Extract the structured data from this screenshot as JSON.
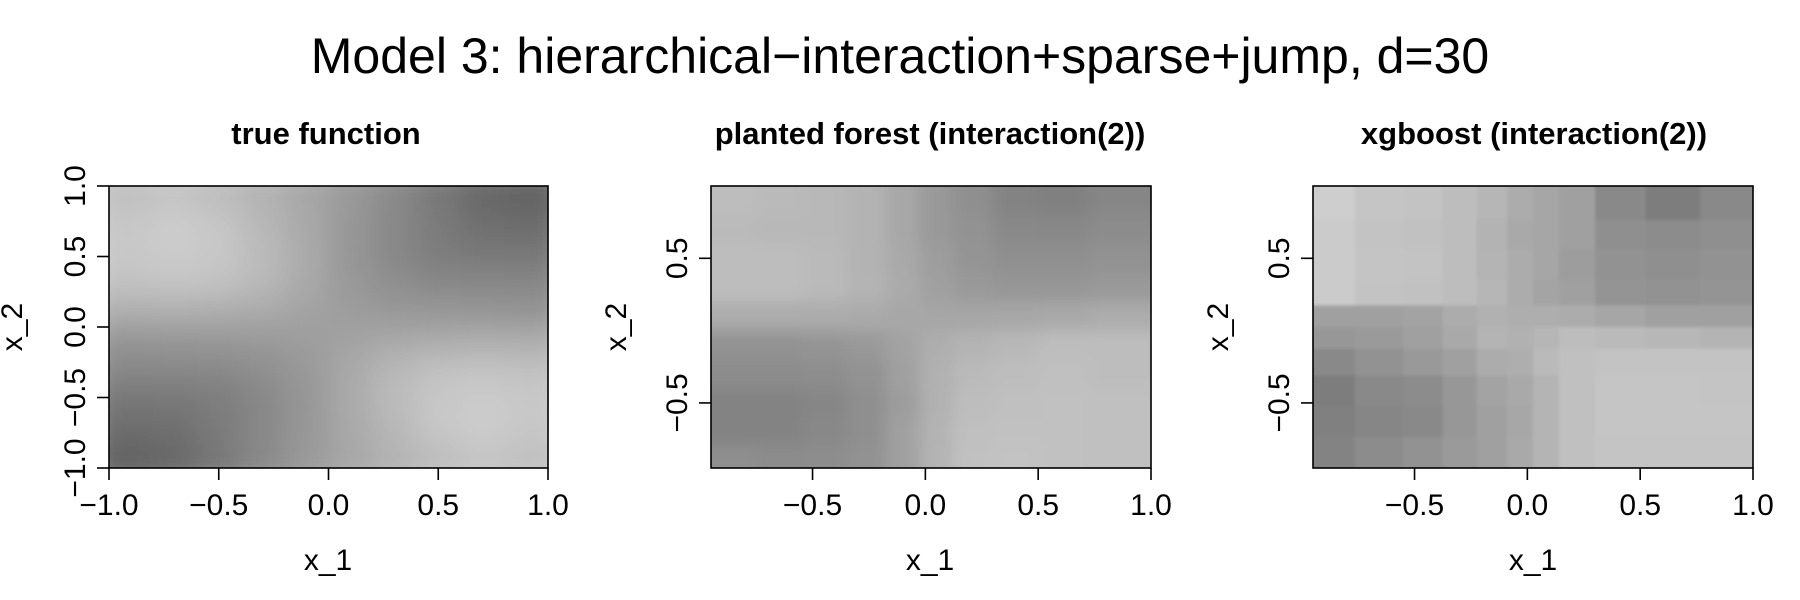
{
  "page": {
    "title": "Model 3: hierarchical−interaction+sparse+jump, d=30"
  },
  "chart_data": [
    {
      "type": "heatmap",
      "title": "true function",
      "xlabel": "x_1",
      "ylabel": "x_2",
      "xlim": [
        -1.0,
        1.0
      ],
      "ylim": [
        -1.0,
        1.0
      ],
      "xticks": [
        -1.0,
        -0.5,
        0.0,
        0.5,
        1.0
      ],
      "xtick_labels": [
        "−1.0",
        "−0.5",
        "0.0",
        "0.5",
        "1.0"
      ],
      "yticks": [
        -1.0,
        -0.5,
        0.0,
        0.5,
        1.0
      ],
      "ytick_labels": [
        "−1.0",
        "−0.5",
        "0.0",
        "0.5",
        "1.0"
      ],
      "grid": false,
      "colorscale": "grayscale: dark = high value, light = low value",
      "x": [
        -0.9,
        -0.7,
        -0.5,
        -0.3,
        -0.1,
        0.1,
        0.3,
        0.5,
        0.7,
        0.9
      ],
      "y": [
        0.9,
        0.7,
        0.5,
        0.3,
        0.1,
        -0.1,
        -0.3,
        -0.5,
        -0.7,
        -0.9
      ],
      "z": [
        [
          0.27,
          0.24,
          0.29,
          0.37,
          0.45,
          0.55,
          0.66,
          0.78,
          0.88,
          0.92
        ],
        [
          0.22,
          0.19,
          0.23,
          0.33,
          0.44,
          0.56,
          0.67,
          0.76,
          0.83,
          0.85
        ],
        [
          0.22,
          0.2,
          0.23,
          0.31,
          0.43,
          0.57,
          0.67,
          0.74,
          0.77,
          0.78
        ],
        [
          0.27,
          0.25,
          0.27,
          0.33,
          0.44,
          0.55,
          0.62,
          0.66,
          0.67,
          0.67
        ],
        [
          0.41,
          0.41,
          0.42,
          0.44,
          0.48,
          0.52,
          0.55,
          0.56,
          0.57,
          0.58
        ],
        [
          0.58,
          0.57,
          0.56,
          0.55,
          0.52,
          0.48,
          0.44,
          0.42,
          0.41,
          0.41
        ],
        [
          0.67,
          0.67,
          0.66,
          0.62,
          0.55,
          0.44,
          0.33,
          0.27,
          0.25,
          0.27
        ],
        [
          0.78,
          0.77,
          0.74,
          0.67,
          0.57,
          0.43,
          0.31,
          0.23,
          0.2,
          0.22
        ],
        [
          0.85,
          0.83,
          0.76,
          0.67,
          0.56,
          0.44,
          0.33,
          0.23,
          0.19,
          0.22
        ],
        [
          0.92,
          0.88,
          0.78,
          0.66,
          0.55,
          0.45,
          0.37,
          0.29,
          0.24,
          0.27
        ]
      ]
    },
    {
      "type": "heatmap",
      "title": "planted forest (interaction(2))",
      "xlabel": "x_1",
      "ylabel": "x_2",
      "xlim": [
        -0.95,
        1.0
      ],
      "ylim": [
        -0.95,
        1.0
      ],
      "xticks": [
        -0.5,
        0.0,
        0.5,
        1.0
      ],
      "xtick_labels": [
        "−0.5",
        "0.0",
        "0.5",
        "1.0"
      ],
      "yticks": [
        -0.5,
        0.5
      ],
      "ytick_labels": [
        "−0.5",
        "0.5"
      ],
      "grid": false,
      "colorscale": "grayscale: dark = high value, light = low value",
      "x": [
        -0.85,
        -0.65,
        -0.45,
        -0.25,
        -0.1,
        0.05,
        0.2,
        0.4,
        0.6,
        0.85
      ],
      "y": [
        0.9,
        0.7,
        0.5,
        0.3,
        0.1,
        -0.1,
        -0.3,
        -0.5,
        -0.7,
        -0.88
      ],
      "z": [
        [
          0.3,
          0.32,
          0.33,
          0.37,
          0.45,
          0.55,
          0.62,
          0.7,
          0.72,
          0.68
        ],
        [
          0.32,
          0.33,
          0.33,
          0.37,
          0.45,
          0.55,
          0.6,
          0.66,
          0.67,
          0.64
        ],
        [
          0.3,
          0.3,
          0.32,
          0.37,
          0.44,
          0.52,
          0.58,
          0.62,
          0.62,
          0.6
        ],
        [
          0.3,
          0.3,
          0.32,
          0.36,
          0.43,
          0.5,
          0.55,
          0.57,
          0.57,
          0.55
        ],
        [
          0.42,
          0.42,
          0.42,
          0.43,
          0.45,
          0.46,
          0.46,
          0.45,
          0.44,
          0.42
        ],
        [
          0.6,
          0.6,
          0.58,
          0.55,
          0.48,
          0.4,
          0.36,
          0.33,
          0.3,
          0.3
        ],
        [
          0.64,
          0.64,
          0.63,
          0.6,
          0.5,
          0.38,
          0.32,
          0.3,
          0.28,
          0.3
        ],
        [
          0.7,
          0.7,
          0.68,
          0.62,
          0.52,
          0.38,
          0.3,
          0.28,
          0.27,
          0.28
        ],
        [
          0.7,
          0.7,
          0.67,
          0.62,
          0.5,
          0.37,
          0.28,
          0.27,
          0.27,
          0.28
        ],
        [
          0.62,
          0.64,
          0.63,
          0.6,
          0.5,
          0.36,
          0.27,
          0.26,
          0.27,
          0.28
        ]
      ]
    },
    {
      "type": "heatmap",
      "title": "xgboost (interaction(2))",
      "xlabel": "x_1",
      "ylabel": "x_2",
      "xlim": [
        -0.95,
        1.0
      ],
      "ylim": [
        -0.95,
        1.0
      ],
      "xticks": [
        -0.5,
        0.0,
        0.5,
        1.0
      ],
      "xtick_labels": [
        "−0.5",
        "0.0",
        "0.5",
        "1.0"
      ],
      "yticks": [
        -0.5,
        0.5
      ],
      "ytick_labels": [
        "−0.5",
        "0.5"
      ],
      "grid": false,
      "colorscale": "grayscale: dark = high value, light = low value",
      "x": [
        -0.88,
        -0.65,
        -0.45,
        -0.3,
        -0.15,
        -0.03,
        0.08,
        0.2,
        0.4,
        0.65,
        0.88
      ],
      "y": [
        0.85,
        0.68,
        0.45,
        0.25,
        0.1,
        -0.05,
        -0.2,
        -0.42,
        -0.62,
        -0.85
      ],
      "z": [
        [
          0.18,
          0.24,
          0.26,
          0.3,
          0.35,
          0.42,
          0.46,
          0.5,
          0.66,
          0.74,
          0.66
        ],
        [
          0.2,
          0.26,
          0.27,
          0.3,
          0.37,
          0.44,
          0.46,
          0.5,
          0.62,
          0.64,
          0.62
        ],
        [
          0.2,
          0.25,
          0.26,
          0.3,
          0.36,
          0.42,
          0.46,
          0.52,
          0.6,
          0.62,
          0.6
        ],
        [
          0.2,
          0.26,
          0.27,
          0.3,
          0.35,
          0.42,
          0.47,
          0.5,
          0.58,
          0.6,
          0.58
        ],
        [
          0.5,
          0.5,
          0.48,
          0.42,
          0.38,
          0.4,
          0.4,
          0.42,
          0.46,
          0.5,
          0.5
        ],
        [
          0.56,
          0.54,
          0.5,
          0.44,
          0.36,
          0.38,
          0.35,
          0.3,
          0.32,
          0.34,
          0.36
        ],
        [
          0.66,
          0.6,
          0.55,
          0.5,
          0.42,
          0.4,
          0.32,
          0.28,
          0.26,
          0.26,
          0.26
        ],
        [
          0.74,
          0.66,
          0.64,
          0.56,
          0.48,
          0.44,
          0.36,
          0.28,
          0.24,
          0.24,
          0.25
        ],
        [
          0.72,
          0.68,
          0.66,
          0.56,
          0.5,
          0.45,
          0.36,
          0.28,
          0.24,
          0.24,
          0.24
        ],
        [
          0.7,
          0.64,
          0.6,
          0.54,
          0.5,
          0.44,
          0.36,
          0.28,
          0.25,
          0.25,
          0.25
        ]
      ]
    }
  ]
}
